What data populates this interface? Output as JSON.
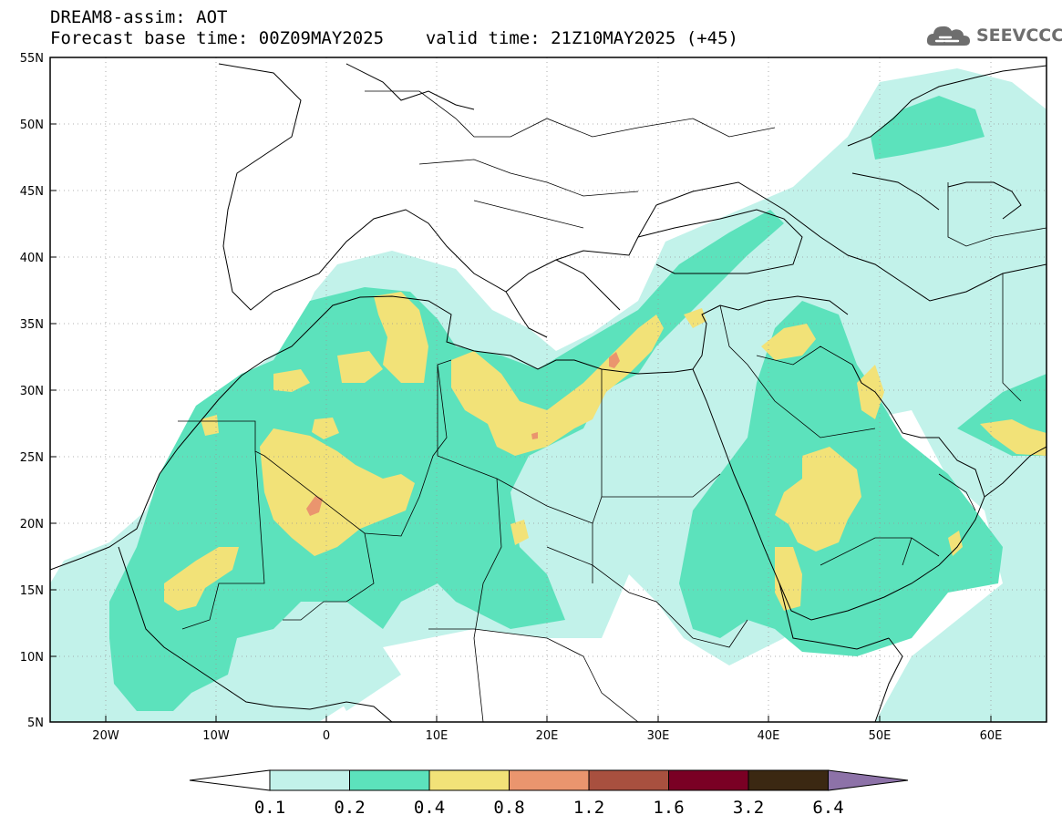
{
  "header": {
    "title": "DREAM8-assim: AOT",
    "base_time_label": "Forecast base time: 00Z09MAY2025",
    "valid_time_label": "valid time: 21Z10MAY2025 (+45)"
  },
  "logo": {
    "text": "SEEVCCC",
    "icon": "cloud-icon",
    "color": "#6e6e6e"
  },
  "map": {
    "projection": "lat-lon",
    "lon_range": [
      -25,
      65
    ],
    "lat_range": [
      5,
      55
    ],
    "lat_labels": [
      "55N",
      "50N",
      "45N",
      "40N",
      "35N",
      "30N",
      "25N",
      "20N",
      "15N",
      "10N",
      "5N"
    ],
    "lon_labels": [
      "20W",
      "10W",
      "0",
      "10E",
      "20E",
      "30E",
      "40E",
      "50E",
      "60E"
    ],
    "grid": "dotted"
  },
  "colorbar": {
    "colors": [
      "#ffffff",
      "#c2f2ea",
      "#5ce2bc",
      "#f2e278",
      "#ea956e",
      "#a8503f",
      "#7a0024",
      "#3b2812",
      "#8d72a8"
    ],
    "labels": [
      "0.1",
      "0.2",
      "0.4",
      "0.8",
      "1.2",
      "1.6",
      "3.2",
      "6.4"
    ]
  }
}
